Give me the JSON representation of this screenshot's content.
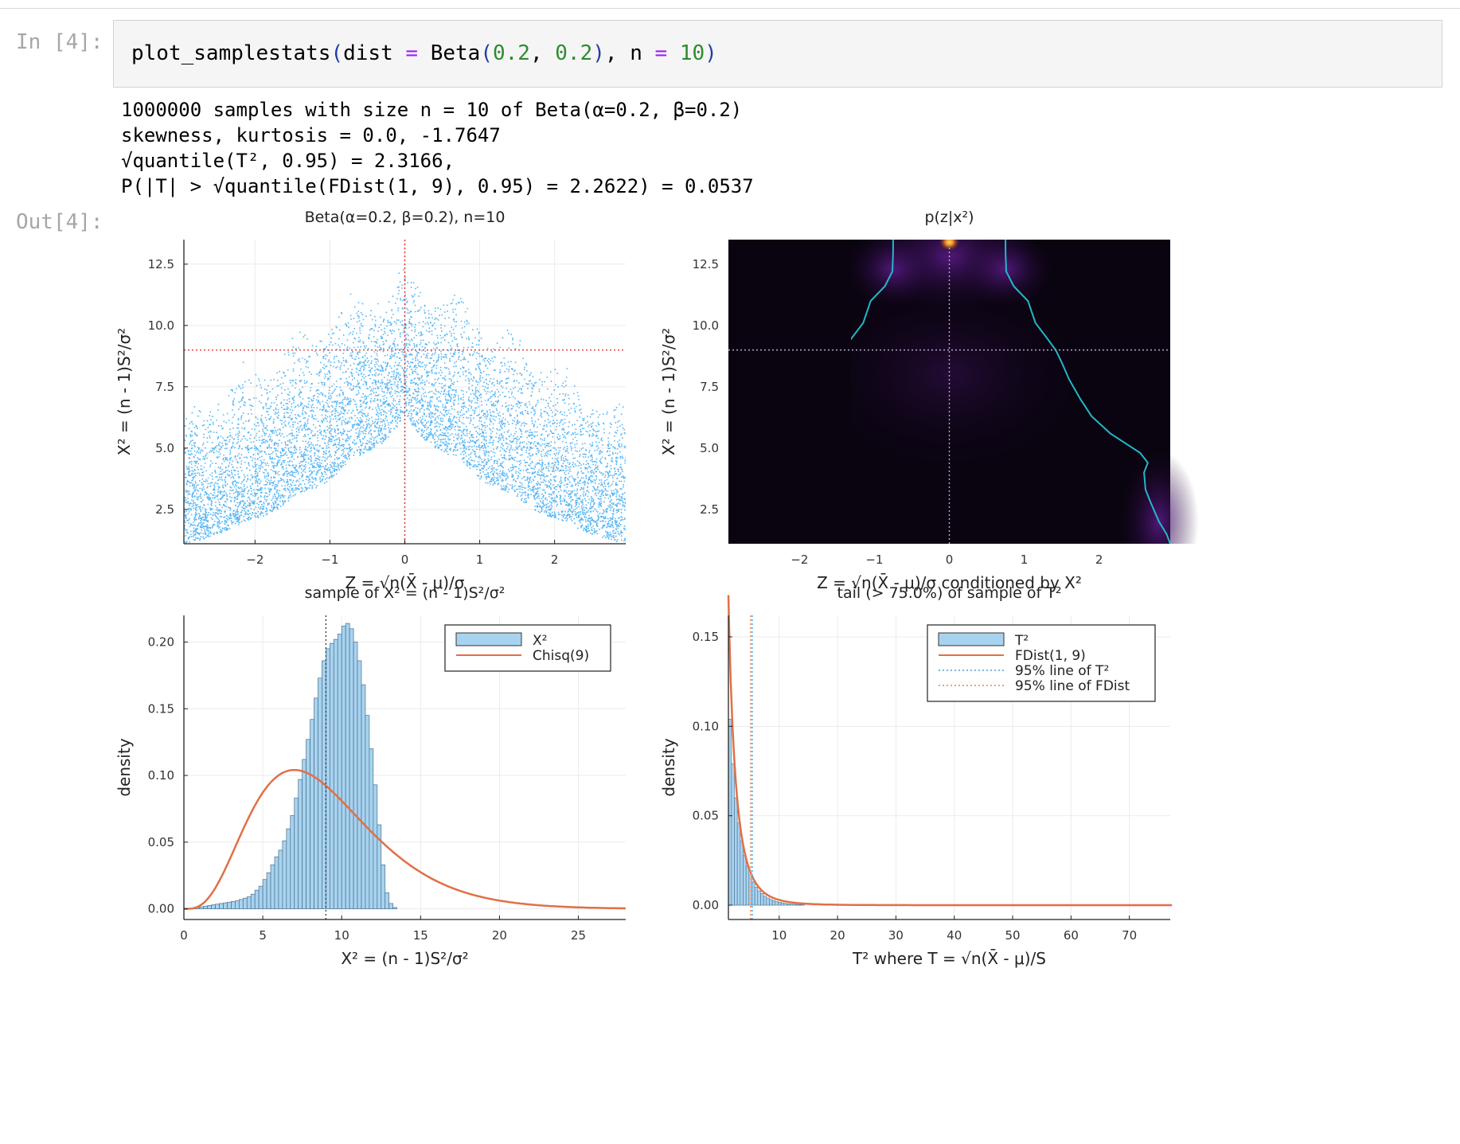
{
  "notebook": {
    "in_prompt": "In [4]:",
    "out_prompt": "Out[4]:",
    "code": {
      "fn": "plot_samplestats",
      "p1": "(",
      "kw1": "dist",
      "eq1": "=",
      "dist": "Beta",
      "p2": "(",
      "a": "0.2",
      "comma1": ",",
      "b": "0.2",
      "p3": ")",
      "comma2": ",",
      "kw2": "n",
      "eq2": "=",
      "n": "10",
      "p4": ")"
    },
    "output_lines": [
      "1000000 samples with size n = 10 of Beta(α=0.2, β=0.2)",
      "skewness, kurtosis = 0.0, -1.7647",
      "√quantile(T², 0.95) = 2.3166,",
      "P(|T| > √quantile(FDist(1, 9), 0.95) = 2.2622) = 0.0537"
    ]
  },
  "chart_data": [
    {
      "type": "scatter",
      "title": "Beta(α=0.2, β=0.2), n=10",
      "xlabel": "Z = √n(X̄ - μ)/σ",
      "ylabel": "X² = (n - 1)S²/σ²",
      "xlim": [
        -2.95,
        2.95
      ],
      "ylim": [
        1.1,
        13.5
      ],
      "xticks": [
        -2,
        -1,
        0,
        1,
        2
      ],
      "xtick_labels": [
        "−2",
        "−1",
        "0",
        "1",
        "2"
      ],
      "yticks": [
        2.5,
        5.0,
        7.5,
        10.0,
        12.5
      ],
      "ytick_labels": [
        "2.5",
        "5.0",
        "7.5",
        "10.0",
        "12.5"
      ],
      "reference_lines": {
        "x": 0,
        "y": 9
      },
      "point_color": "#1e9df0",
      "ref_color": "#e8413c"
    },
    {
      "type": "heatmap",
      "title": "p(z|x²)",
      "xlabel": "Z = √n(X̄ - μ)/σ conditioned by X²",
      "ylabel": "X² = (n - 1)S²/σ²",
      "xlim": [
        -2.95,
        2.95
      ],
      "ylim": [
        1.1,
        13.5
      ],
      "xticks": [
        -2,
        -1,
        0,
        1,
        2
      ],
      "xtick_labels": [
        "−2",
        "−1",
        "0",
        "1",
        "2"
      ],
      "yticks": [
        2.5,
        5.0,
        7.5,
        10.0,
        12.5
      ],
      "ytick_labels": [
        "2.5",
        "5.0",
        "7.5",
        "10.0",
        "12.5"
      ],
      "reference_lines": {
        "x": 0,
        "y": 9
      },
      "contour_color": "#24b7c9",
      "contour_points": [
        [
          1.1,
          2.95
        ],
        [
          1.5,
          2.9
        ],
        [
          2.0,
          2.8
        ],
        [
          2.7,
          2.7
        ],
        [
          3.3,
          2.62
        ],
        [
          4.0,
          2.6
        ],
        [
          4.4,
          2.65
        ],
        [
          4.8,
          2.55
        ],
        [
          5.1,
          2.4
        ],
        [
          5.6,
          2.15
        ],
        [
          6.3,
          1.9
        ],
        [
          7.0,
          1.75
        ],
        [
          7.8,
          1.6
        ],
        [
          8.5,
          1.5
        ],
        [
          9.0,
          1.42
        ],
        [
          9.5,
          1.3
        ],
        [
          10.1,
          1.15
        ],
        [
          11.0,
          1.05
        ],
        [
          11.6,
          0.86
        ],
        [
          12.2,
          0.76
        ],
        [
          13.0,
          0.75
        ],
        [
          13.5,
          0.75
        ]
      ]
    },
    {
      "type": "bar",
      "title": "sample of X² = (n - 1)S²/σ²",
      "xlabel": "X² = (n - 1)S²/σ²",
      "ylabel": "density",
      "xlim": [
        0,
        28
      ],
      "ylim": [
        -0.008,
        0.22
      ],
      "xticks": [
        0,
        5,
        10,
        15,
        20,
        25
      ],
      "xtick_labels": [
        "0",
        "5",
        "10",
        "15",
        "20",
        "25"
      ],
      "yticks": [
        0.0,
        0.05,
        0.1,
        0.15,
        0.2
      ],
      "ytick_labels": [
        "0.00",
        "0.05",
        "0.10",
        "0.15",
        "0.20"
      ],
      "bin_width": 0.25,
      "bin_start": 0,
      "values": [
        0.0,
        0.0,
        0.0005,
        0.001,
        0.0015,
        0.002,
        0.0025,
        0.003,
        0.0035,
        0.004,
        0.0045,
        0.005,
        0.0055,
        0.006,
        0.007,
        0.008,
        0.009,
        0.011,
        0.014,
        0.017,
        0.022,
        0.027,
        0.033,
        0.039,
        0.044,
        0.051,
        0.06,
        0.07,
        0.083,
        0.097,
        0.112,
        0.127,
        0.142,
        0.158,
        0.173,
        0.186,
        0.195,
        0.199,
        0.202,
        0.206,
        0.212,
        0.214,
        0.21,
        0.2,
        0.186,
        0.168,
        0.145,
        0.12,
        0.093,
        0.063,
        0.033,
        0.012,
        0.004,
        0.001,
        0.0
      ],
      "series": [
        {
          "name": "X²",
          "kind": "histogram"
        },
        {
          "name": "Chisq(9)",
          "kind": "line",
          "df": 9
        }
      ],
      "vline": 9,
      "legend_position": "top-right",
      "hist_color": "#a8d3f0",
      "line_color": "#e26f46"
    },
    {
      "type": "bar",
      "title": "tail (> 75.0%) of sample of T²",
      "xlabel": "T² where T = √n(X̄ - μ)/S",
      "ylabel": "density",
      "xlim": [
        1.3,
        77
      ],
      "ylim": [
        -0.008,
        0.162
      ],
      "xticks": [
        10,
        20,
        30,
        40,
        50,
        60,
        70
      ],
      "xtick_labels": [
        "10",
        "20",
        "30",
        "40",
        "50",
        "60",
        "70"
      ],
      "yticks": [
        0.0,
        0.05,
        0.1,
        0.15
      ],
      "ytick_labels": [
        "0.00",
        "0.05",
        "0.10",
        "0.15"
      ],
      "bin_width": 0.5,
      "bin_start": 1.32,
      "values": [
        0.104,
        0.079,
        0.06,
        0.046,
        0.036,
        0.028,
        0.022,
        0.017,
        0.013,
        0.01,
        0.008,
        0.0065,
        0.005,
        0.004,
        0.0032,
        0.0026,
        0.002,
        0.0016,
        0.0013,
        0.001,
        0.0008,
        0.0006,
        0.0005,
        0.0004,
        0.0003,
        0.0002
      ],
      "series": [
        {
          "name": "T²",
          "kind": "histogram"
        },
        {
          "name": "FDist(1, 9)",
          "kind": "line",
          "d1": 1,
          "d2": 9
        },
        {
          "name": "95% line of T²",
          "kind": "vline",
          "value": 5.37
        },
        {
          "name": "95% line of FDist",
          "kind": "vline",
          "value": 5.12
        }
      ],
      "legend_position": "top-right",
      "hist_color": "#a8d3f0",
      "line_color": "#e26f46",
      "vline_color_t": "#6fb8e0",
      "vline_color_f": "#e9a184"
    }
  ]
}
